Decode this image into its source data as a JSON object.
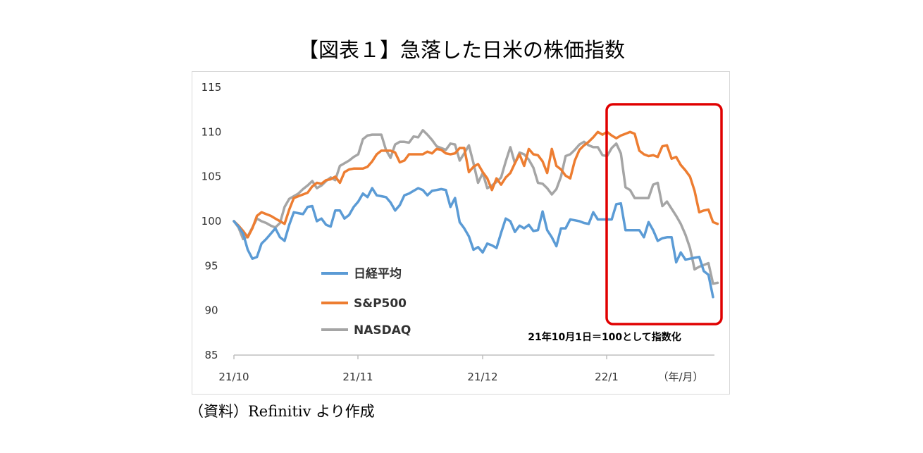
{
  "title": "【図表１】急落した日米の株価指数",
  "source": "（資料）Refinitiv より作成",
  "chart_data": {
    "type": "line",
    "ylim": [
      85,
      115
    ],
    "yticks": [
      "85",
      "90",
      "95",
      "100",
      "105",
      "110",
      "115"
    ],
    "xtick_labels": [
      "21/10",
      "21/11",
      "21/12",
      "22/1"
    ],
    "x_unit_label": "（年/月）",
    "annotation": "21年10月1日＝100として指数化",
    "highlight_box": true,
    "colors": {
      "nikkei": "#5b9bd5",
      "sp500": "#ed7d31",
      "nasdaq": "#a5a5a5",
      "box": "#e00000"
    },
    "series": [
      {
        "name": "日経平均",
        "key": "nikkei",
        "values": [
          100.0,
          99.4,
          98.6,
          96.8,
          95.8,
          96.0,
          97.5,
          98.0,
          98.6,
          99.2,
          98.2,
          97.8,
          99.6,
          101.0,
          100.9,
          100.8,
          101.6,
          101.7,
          100.0,
          100.3,
          99.6,
          99.4,
          101.2,
          101.2,
          100.3,
          100.7,
          101.6,
          102.2,
          103.1,
          102.7,
          103.7,
          102.9,
          102.8,
          102.7,
          102.1,
          101.2,
          101.8,
          102.9,
          103.1,
          103.4,
          103.7,
          103.5,
          102.9,
          103.4,
          103.5,
          103.6,
          103.5,
          101.6,
          102.6,
          99.9,
          99.2,
          98.3,
          96.8,
          97.1,
          96.5,
          97.5,
          97.3,
          97.0,
          98.7,
          100.3,
          100.0,
          98.8,
          99.5,
          99.2,
          99.6,
          98.9,
          99.0,
          101.1,
          99.0,
          98.2,
          97.2,
          99.2,
          99.2,
          100.2,
          100.1,
          100.0,
          99.8,
          99.7,
          101.0,
          100.2,
          100.2,
          100.2,
          100.2,
          101.9,
          102.0,
          99.0,
          99.0,
          99.0,
          99.0,
          98.2,
          99.9,
          99.0,
          97.8,
          98.1,
          98.2,
          98.2,
          95.4,
          96.5,
          95.7,
          95.8,
          95.9,
          96.0,
          94.4,
          94.0,
          91.5
        ]
      },
      {
        "name": "S&P500",
        "key": "sp500",
        "values": [
          100.0,
          99.5,
          98.9,
          98.2,
          99.2,
          100.6,
          101.0,
          100.8,
          100.6,
          100.3,
          100.0,
          99.7,
          101.3,
          102.6,
          102.8,
          103.0,
          103.2,
          103.9,
          104.3,
          104.2,
          104.6,
          104.7,
          105.0,
          104.3,
          105.5,
          105.8,
          105.9,
          105.9,
          105.9,
          106.1,
          106.7,
          107.5,
          107.9,
          107.9,
          107.9,
          107.7,
          106.6,
          106.8,
          107.5,
          107.5,
          107.5,
          107.5,
          107.8,
          107.6,
          108.1,
          108.0,
          107.6,
          107.5,
          107.6,
          108.2,
          108.2,
          105.5,
          106.1,
          106.4,
          105.5,
          104.8,
          103.5,
          104.8,
          104.1,
          104.9,
          105.4,
          106.5,
          107.5,
          106.2,
          108.1,
          107.5,
          107.4,
          106.7,
          105.4,
          108.1,
          106.2,
          105.8,
          105.1,
          104.8,
          106.8,
          108.0,
          108.5,
          108.9,
          109.4,
          110.0,
          109.7,
          110.0,
          109.6,
          109.3,
          109.6,
          109.8,
          110.0,
          109.8,
          107.9,
          107.5,
          107.3,
          107.4,
          107.2,
          108.4,
          108.5,
          107.0,
          107.2,
          106.3,
          105.7,
          105.0,
          103.4,
          101.0,
          101.2,
          101.3,
          99.9,
          99.7
        ]
      },
      {
        "name": "NASDAQ",
        "key": "nasdaq",
        "values": [
          100.0,
          99.3,
          98.0,
          98.3,
          99.3,
          100.3,
          100.0,
          99.8,
          99.5,
          99.3,
          99.8,
          101.6,
          102.5,
          102.8,
          103.1,
          103.6,
          104.0,
          104.5,
          103.7,
          104.0,
          104.5,
          104.9,
          104.6,
          106.2,
          106.5,
          106.8,
          107.2,
          107.5,
          109.2,
          109.6,
          109.7,
          109.7,
          109.7,
          108.0,
          107.1,
          108.6,
          108.9,
          108.9,
          108.8,
          109.5,
          109.4,
          110.2,
          109.7,
          109.1,
          108.4,
          108.2,
          108.0,
          108.7,
          108.6,
          106.8,
          107.6,
          108.5,
          106.5,
          104.3,
          105.4,
          103.7,
          104.0,
          104.4,
          104.9,
          106.7,
          108.3,
          106.5,
          107.7,
          107.5,
          106.9,
          106.0,
          104.3,
          104.2,
          103.7,
          103.0,
          103.6,
          105.0,
          107.3,
          107.5,
          108.0,
          108.6,
          108.9,
          108.5,
          108.3,
          108.3,
          107.4,
          107.3,
          108.2,
          108.7,
          107.6,
          103.8,
          103.5,
          102.6,
          102.6,
          102.6,
          102.6,
          104.1,
          104.3,
          101.7,
          102.2,
          101.4,
          100.6,
          99.7,
          98.5,
          97.0,
          94.6,
          94.9,
          95.1,
          95.3,
          93.0,
          93.1
        ]
      }
    ]
  }
}
